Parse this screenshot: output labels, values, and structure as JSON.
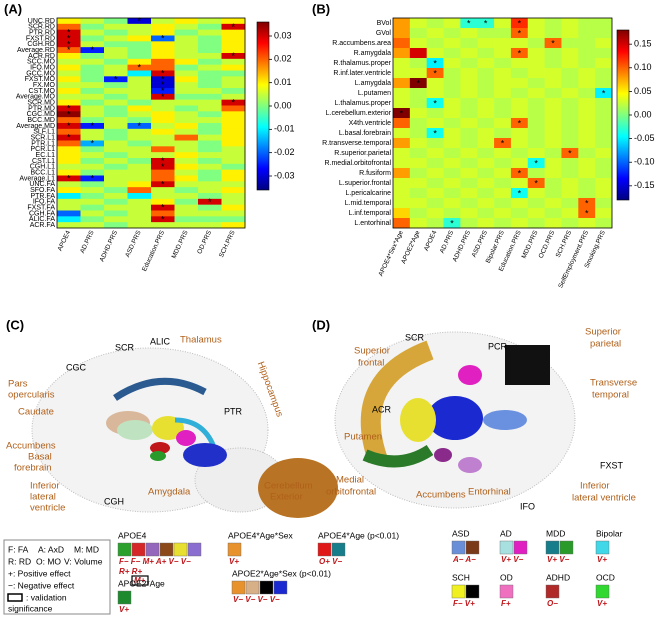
{
  "chart_data": [
    {
      "type": "heatmap",
      "panel_label": "(A)",
      "rows": [
        "UNC.RD",
        "SCR.RD",
        "PTR.RD",
        "FXST.RD",
        "CGH.RD",
        "Average.RD",
        "ACR.RD",
        "SCC.MO",
        "IFO.MO",
        "GCC.MO",
        "FXST.MO",
        "FX.MO",
        "CST.MO",
        "Average.MO",
        "SCR.MD",
        "PTR.MD",
        "CGC.MD",
        "BCC.MD",
        "Average.MD",
        "SLF.L1",
        "SCR.L1",
        "PTR.L1",
        "PCR.L1",
        "EC.L1",
        "CST.L1",
        "CGH.L1",
        "BCC.L1",
        "Average.L1",
        "UNC.FA",
        "SFO.FA",
        "PTR.FA",
        "IFO.FA",
        "FXST.FA",
        "CGH.FA",
        "ALIC.FA",
        "ACR.FA"
      ],
      "columns": [
        "APOE4",
        "AD.PRS",
        "ADHD.PRS",
        "ASD.PRS",
        "Education.PRS",
        "MDD.PRS",
        "OD.PRS",
        "SCH.PRS"
      ],
      "values": [
        [
          0.01,
          0.005,
          0,
          -0.03,
          0.005,
          0.01,
          0.005,
          0.01
        ],
        [
          0.02,
          0,
          0.005,
          0.005,
          0.01,
          0.005,
          0,
          0.03
        ],
        [
          0.03,
          0.005,
          0,
          0.005,
          0.01,
          0,
          0.005,
          0.01
        ],
        [
          0.03,
          0,
          0.005,
          0.01,
          -0.02,
          0.005,
          0,
          0.01
        ],
        [
          0.03,
          0.005,
          0,
          0,
          0.01,
          0.005,
          0,
          0.01
        ],
        [
          0.02,
          -0.025,
          0.005,
          0,
          0.01,
          0.005,
          0,
          0.01
        ],
        [
          0.01,
          0,
          0.005,
          0,
          0.01,
          0.005,
          0.005,
          0.03
        ],
        [
          0.005,
          0.005,
          0,
          0.01,
          0.02,
          0.01,
          0,
          0.005
        ],
        [
          0.01,
          0,
          0.005,
          0.02,
          0.02,
          0,
          0.005,
          0.01
        ],
        [
          0.005,
          0,
          0.005,
          -0.01,
          0.03,
          0.005,
          0,
          0
        ],
        [
          0.01,
          0,
          -0.025,
          0.005,
          -0.03,
          0.01,
          0,
          0.005
        ],
        [
          0.005,
          0.005,
          0,
          0.005,
          -0.03,
          0.005,
          0,
          0.005
        ],
        [
          0.01,
          0,
          0.005,
          0.005,
          -0.025,
          0.005,
          0.005,
          0
        ],
        [
          0.005,
          0.005,
          0,
          0.005,
          0.03,
          0,
          0,
          0.005
        ],
        [
          0.01,
          0,
          0.005,
          0,
          0.005,
          0.005,
          0.005,
          0.03
        ],
        [
          0.03,
          0.005,
          0,
          0.01,
          0.005,
          0,
          0.005,
          0.02
        ],
        [
          0.035,
          0.005,
          0,
          0.005,
          0.01,
          0.005,
          0,
          0.01
        ],
        [
          0.02,
          0,
          0.005,
          0,
          0.01,
          0.005,
          0.005,
          0.01
        ],
        [
          0.03,
          -0.025,
          0.005,
          -0.02,
          0.005,
          0.01,
          0,
          0.01
        ],
        [
          0.02,
          0.005,
          0,
          0.005,
          0.01,
          0.005,
          0,
          0.01
        ],
        [
          0.03,
          0.005,
          0,
          0.005,
          0.005,
          0.02,
          0.005,
          0.01
        ],
        [
          0.02,
          -0.015,
          0.005,
          0,
          0.005,
          0.005,
          0,
          0.01
        ],
        [
          0.01,
          0,
          0.005,
          0.005,
          0.02,
          0.005,
          0,
          0.005
        ],
        [
          0.01,
          0.005,
          0,
          0.005,
          0.005,
          0.01,
          0.005,
          0.005
        ],
        [
          0.01,
          0,
          0.005,
          0,
          0.03,
          0.005,
          0,
          0.005
        ],
        [
          0.005,
          0.005,
          0,
          0.005,
          0.03,
          0.01,
          0.005,
          0
        ],
        [
          0.01,
          0,
          0.005,
          0.005,
          0.02,
          0.005,
          0,
          0.01
        ],
        [
          0.03,
          -0.025,
          0.005,
          0.005,
          0.02,
          0.01,
          0,
          0.01
        ],
        [
          0.005,
          0,
          0.005,
          0.01,
          0.03,
          0.005,
          0.005,
          0.005
        ],
        [
          0.01,
          0.005,
          0,
          0.02,
          0.005,
          0,
          0.005,
          0.01
        ],
        [
          -0.01,
          0,
          0.005,
          -0.01,
          0.005,
          0.005,
          0,
          0.005
        ],
        [
          0.005,
          0.005,
          0,
          0.005,
          0.01,
          0,
          0.03,
          0.005
        ],
        [
          0.005,
          0,
          0.005,
          0.005,
          0.03,
          0.005,
          0,
          0.01
        ],
        [
          -0.02,
          0.005,
          0,
          0.005,
          0.02,
          0.005,
          0.005,
          0.005
        ],
        [
          -0.01,
          0,
          0.005,
          0.005,
          0.03,
          0,
          0,
          0
        ],
        [
          0.005,
          0.005,
          0,
          0.005,
          0.005,
          0.005,
          0.005,
          0.01
        ]
      ],
      "significant": [
        [
          0,
          3
        ],
        [
          1,
          7
        ],
        [
          2,
          0
        ],
        [
          3,
          0
        ],
        [
          3,
          4
        ],
        [
          4,
          0
        ],
        [
          5,
          0
        ],
        [
          5,
          1
        ],
        [
          6,
          7
        ],
        [
          8,
          3
        ],
        [
          9,
          4
        ],
        [
          10,
          2
        ],
        [
          10,
          4
        ],
        [
          11,
          4
        ],
        [
          12,
          4
        ],
        [
          13,
          4
        ],
        [
          14,
          7
        ],
        [
          15,
          0
        ],
        [
          16,
          0
        ],
        [
          18,
          0
        ],
        [
          18,
          1
        ],
        [
          18,
          3
        ],
        [
          20,
          0
        ],
        [
          21,
          1
        ],
        [
          24,
          4
        ],
        [
          25,
          4
        ],
        [
          27,
          0
        ],
        [
          27,
          1
        ],
        [
          28,
          4
        ],
        [
          31,
          6
        ],
        [
          32,
          4
        ],
        [
          34,
          4
        ]
      ],
      "significance_label": "*",
      "clim": [
        -0.036,
        0.036
      ],
      "cticks": [
        0.03,
        0.02,
        0.01,
        {
          "value": 0,
          "label": "0.00"
        },
        -0.01,
        -0.02,
        -0.03
      ]
    },
    {
      "type": "heatmap",
      "panel_label": "(B)",
      "rows": [
        "BVol",
        "GVol",
        "R.accumbens.area",
        "R.amygdala",
        "R.thalamus.proper",
        "R.inf.later.ventricle",
        "L.amygdala",
        "L.putamen",
        "L.thalamus.proper",
        "L.cerebellum.exterior",
        "X4th.ventricle",
        "L.basal.forebrain",
        "R.transverse.temporal",
        "R.superior.parietal",
        "R.medial.orbitofrontal",
        "R.fusiform",
        "L.superior.frontal",
        "L.pericalcarine",
        "L.mid.temporal",
        "L.inf.temporal",
        "L.entorhinal"
      ],
      "columns": [
        "APOE4*Sex*Age",
        "APOE2*Age",
        "APOE4",
        "AD.PRS",
        "ADHD.PRS",
        "ASD.PRS",
        "Bipolar.PRS",
        "Education.PRS",
        "MDD.PRS",
        "OCD.PRS",
        "SCH.PRS",
        "SelfEmployment.PRS",
        "Smoking.PRS"
      ],
      "values": [
        [
          0.08,
          0.03,
          0.02,
          0.03,
          -0.03,
          -0.03,
          0.03,
          0.12,
          0.03,
          0.02,
          0.03,
          0.02,
          0.02
        ],
        [
          0.08,
          0.02,
          0.03,
          0.02,
          0.03,
          0.02,
          0.02,
          0.1,
          0.03,
          0.02,
          0.03,
          0.02,
          0.02
        ],
        [
          0.1,
          0.03,
          0.02,
          0.03,
          0.02,
          0.03,
          0.03,
          0.03,
          0.02,
          0.1,
          0.02,
          0.02,
          0.03
        ],
        [
          0.08,
          0.15,
          0.03,
          0.02,
          0.03,
          0.02,
          0.03,
          0.1,
          0.03,
          0.02,
          0.03,
          0.02,
          0.02
        ],
        [
          0.03,
          0.02,
          -0.05,
          0.03,
          0.02,
          0.03,
          0.02,
          0.03,
          0.03,
          0.02,
          0.03,
          0.02,
          0.03
        ],
        [
          0.03,
          0.03,
          0.1,
          0.02,
          0.03,
          0.02,
          0.03,
          0.02,
          0.03,
          0.03,
          0.02,
          0.03,
          0.02
        ],
        [
          0.08,
          0.18,
          0.03,
          0.02,
          0.03,
          0.02,
          0.03,
          0.03,
          0.02,
          0.03,
          0.02,
          0.03,
          0.02
        ],
        [
          0.03,
          0.02,
          0.03,
          0.02,
          0.03,
          0.02,
          0.03,
          0.02,
          0.03,
          0.02,
          0.03,
          0.02,
          -0.05
        ],
        [
          0.03,
          0.02,
          -0.04,
          0.03,
          0.02,
          0.03,
          0.02,
          0.03,
          0.02,
          0.03,
          0.02,
          0.03,
          0.02
        ],
        [
          0.18,
          0.03,
          0.02,
          0.03,
          0.02,
          0.03,
          0.02,
          0.03,
          0.02,
          0.03,
          0.02,
          0.03,
          0.02
        ],
        [
          0.1,
          0.02,
          0.03,
          0.02,
          0.03,
          0.02,
          0.03,
          0.1,
          0.02,
          0.03,
          0.02,
          0.03,
          0.02
        ],
        [
          0.03,
          0.02,
          -0.04,
          0.03,
          0.02,
          0.03,
          0.02,
          0.03,
          0.02,
          0.03,
          0.02,
          0.03,
          0.02
        ],
        [
          0.08,
          0.03,
          0.02,
          0.03,
          0.02,
          0.03,
          0.1,
          0.03,
          0.02,
          0.03,
          0.02,
          0.03,
          0.02
        ],
        [
          0.03,
          0.02,
          0.03,
          0.02,
          0.03,
          0.02,
          0.03,
          0.02,
          0.03,
          0.02,
          0.1,
          0.02,
          0.03
        ],
        [
          0.03,
          0.03,
          0.02,
          0.03,
          0.02,
          0.03,
          0.02,
          0.03,
          -0.04,
          0.03,
          0.02,
          0.03,
          0.02
        ],
        [
          0.08,
          0.02,
          0.03,
          0.02,
          0.03,
          0.02,
          0.03,
          0.1,
          0.02,
          0.03,
          0.02,
          0.03,
          0.02
        ],
        [
          0.03,
          0.03,
          0.02,
          0.03,
          0.02,
          0.03,
          0.02,
          0.03,
          0.1,
          0.02,
          0.03,
          0.02,
          0.03
        ],
        [
          0.03,
          0.02,
          0.03,
          0.02,
          0.03,
          0.02,
          0.03,
          -0.04,
          0.03,
          0.02,
          0.03,
          0.02,
          0.03
        ],
        [
          0.03,
          0.03,
          0.02,
          0.03,
          0.02,
          0.03,
          0.02,
          0.03,
          0.02,
          0.03,
          0.02,
          0.1,
          0.02
        ],
        [
          0.06,
          0.02,
          0.03,
          0.02,
          0.03,
          0.02,
          0.03,
          0.02,
          0.03,
          0.02,
          0.03,
          0.1,
          0.03
        ],
        [
          0.1,
          0.03,
          0.02,
          -0.03,
          0.02,
          0.03,
          0.02,
          0.03,
          0.02,
          0.03,
          0.02,
          0.03,
          0.02
        ]
      ],
      "significant": [
        [
          0,
          4
        ],
        [
          0,
          5
        ],
        [
          0,
          7
        ],
        [
          1,
          7
        ],
        [
          2,
          9
        ],
        [
          3,
          7
        ],
        [
          4,
          2
        ],
        [
          5,
          2
        ],
        [
          6,
          1
        ],
        [
          7,
          12
        ],
        [
          8,
          2
        ],
        [
          9,
          0
        ],
        [
          10,
          7
        ],
        [
          11,
          2
        ],
        [
          12,
          6
        ],
        [
          13,
          10
        ],
        [
          14,
          8
        ],
        [
          15,
          7
        ],
        [
          16,
          8
        ],
        [
          17,
          7
        ],
        [
          18,
          11
        ],
        [
          19,
          11
        ],
        [
          20,
          3
        ]
      ],
      "significance_label": "*",
      "clim": [
        -0.18,
        0.18
      ],
      "cticks": [
        0.15,
        {
          "value": 0.1,
          "label": "0.10"
        },
        0.05,
        {
          "value": 0,
          "label": "0.00"
        },
        -0.05,
        {
          "value": -0.1,
          "label": "-0.10"
        },
        -0.15
      ]
    }
  ],
  "panel_c": {
    "label": "(C)",
    "black": [
      "SCR",
      "ALIC",
      "CGC",
      "PTR",
      "CGH"
    ],
    "orange": [
      "Thalamus",
      "Pars",
      "opercularis",
      "Caudate",
      "Hippocampus",
      "Accumbens",
      "Basal",
      "forebrain",
      "Inferior",
      "lateral",
      "ventricle",
      "Amygdala",
      "Cerebellum",
      "Exterior"
    ]
  },
  "panel_d": {
    "label": "(D)",
    "black": [
      "PCR",
      "SCR",
      "ACR",
      "FXST",
      "IFO"
    ],
    "orange": [
      "Superior",
      "parietal",
      "Superior",
      "frontal",
      "Transverse",
      "temporal",
      "Putamen",
      "Medial",
      "orbitofrontal",
      "Accumbens",
      "Entorhinal",
      "Inferior",
      "lateral ventricle"
    ]
  },
  "legend": {
    "key": [
      "F: FA",
      "A: AxD",
      "M: MD",
      "R: RD",
      "O: MO",
      "V: Volume",
      "+: Positive effect",
      "−: Negative effect",
      ": validation",
      "significance"
    ],
    "groups": [
      {
        "title": "APOE4",
        "colors": [
          "#2ca02c",
          "#d62728",
          "#9467bd",
          "#8c4a1a",
          "#e8e030",
          "#8a6fd0"
        ],
        "codes": "F− F− M+ A+ V− V−",
        "codes2": "R+ R+",
        "codes3": "M+"
      },
      {
        "title": "APOE2*Age",
        "colors": [
          "#1e8a2e"
        ],
        "codes": "V+"
      },
      {
        "title": "APOE4*Age*Sex",
        "colors": [
          "#e8922e"
        ],
        "codes": "V+"
      },
      {
        "title": "APOE4*Age (p<0.01)",
        "colors": [
          "#e01818",
          "#177d8a"
        ],
        "codes": "O+ V−"
      },
      {
        "title": "APOE2*Age*Sex (p<0.01)",
        "colors": [
          "#e8922e",
          "#d8b088",
          "#000000",
          "#1a2ad0"
        ],
        "codes": "V− V− V− V−"
      },
      {
        "title": "ASD",
        "colors": [
          "#6a8fd8",
          "#7a3a1a"
        ],
        "codes": "A− A−"
      },
      {
        "title": "AD",
        "colors": [
          "#a8e0e0",
          "#e020c0"
        ],
        "codes": "V+ V−"
      },
      {
        "title": "MDD",
        "colors": [
          "#177d8a",
          "#2a9a2a"
        ],
        "codes": "V+ V−"
      },
      {
        "title": "Bipolar",
        "colors": [
          "#40d8e8"
        ],
        "codes": "V+"
      },
      {
        "title": "SCH",
        "colors": [
          "#f0f020",
          "#000000"
        ],
        "codes": "F− V+"
      },
      {
        "title": "OD",
        "colors": [
          "#f070c0"
        ],
        "codes": "F+"
      },
      {
        "title": "ADHD",
        "colors": [
          "#b02a2a"
        ],
        "codes": "O−"
      },
      {
        "title": "OCD",
        "colors": [
          "#30d830"
        ],
        "codes": "V+"
      }
    ]
  }
}
